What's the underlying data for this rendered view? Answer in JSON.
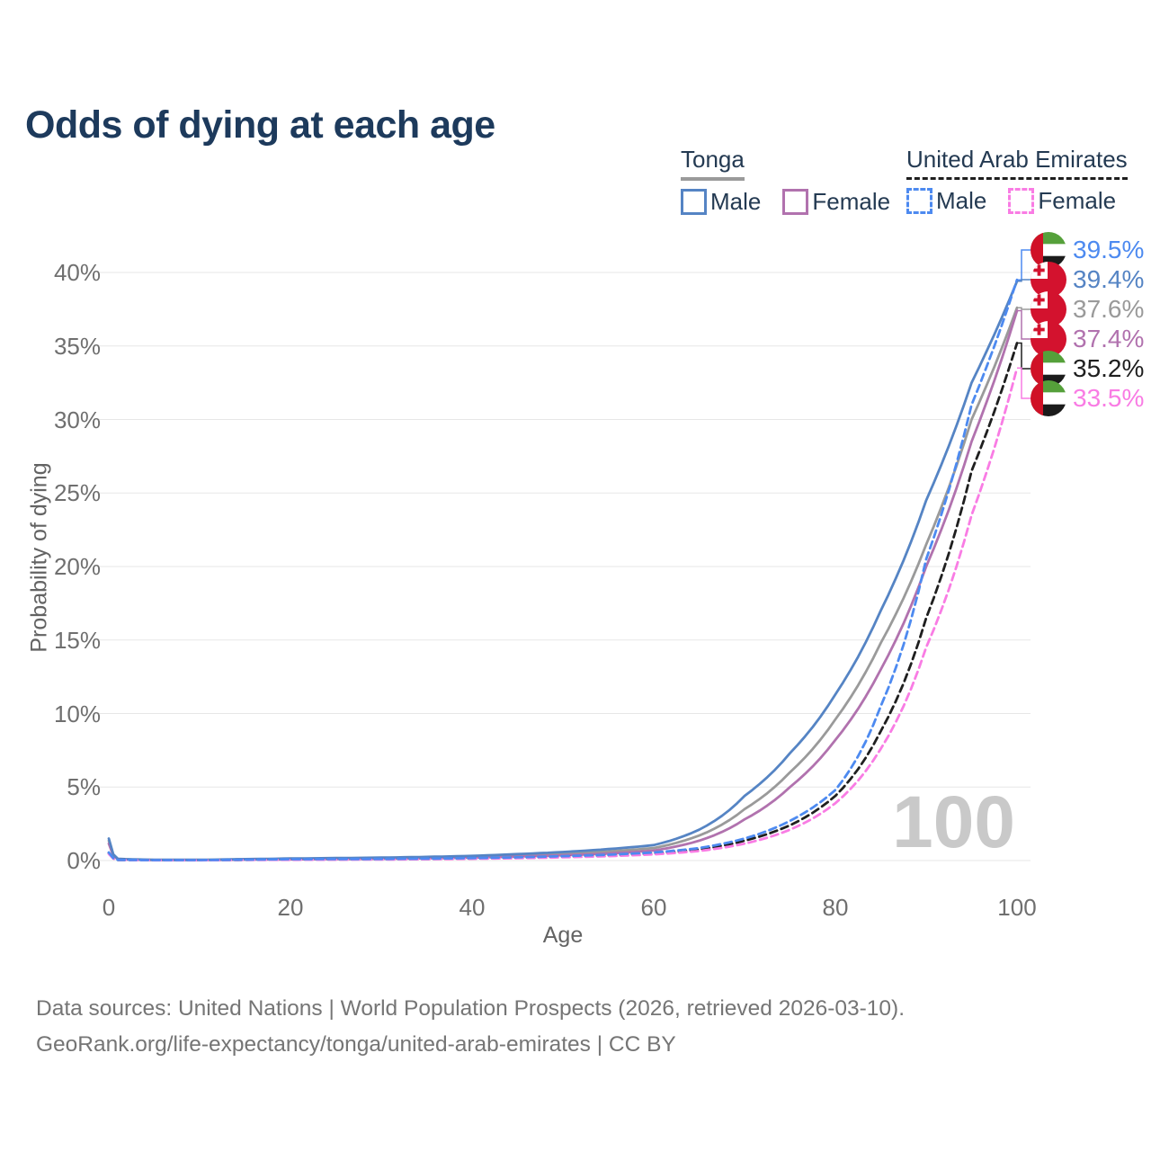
{
  "title": "Odds of dying at each age",
  "watermark": "100",
  "legend": {
    "groups": [
      {
        "country": "Tonga",
        "style": "solid",
        "items": [
          {
            "label": "Male",
            "color": "#5584c4",
            "dashed": false
          },
          {
            "label": "Female",
            "color": "#b172ae",
            "dashed": false
          }
        ]
      },
      {
        "country": "United Arab Emirates",
        "style": "dashed",
        "items": [
          {
            "label": "Male",
            "color": "#4d8af0",
            "dashed": true
          },
          {
            "label": "Female",
            "color": "#f97ce4",
            "dashed": true
          }
        ]
      }
    ]
  },
  "footer": {
    "line1": "Data sources: United Nations | World Population Prospects (2026, retrieved 2026-03-10).",
    "line2": "GeoRank.org/life-expectancy/tonga/united-arab-emirates | CC BY"
  },
  "chart_data": {
    "type": "line",
    "title": "Odds of dying at each age",
    "xlabel": "Age",
    "ylabel": "Probability of dying",
    "xlim": [
      0,
      100
    ],
    "ylim": [
      0,
      41.5
    ],
    "grid": true,
    "legend_position": "top-right",
    "xticks": [
      0,
      20,
      40,
      60,
      80,
      100
    ],
    "yticks": [
      "0%",
      "5%",
      "10%",
      "15%",
      "20%",
      "25%",
      "30%",
      "35%",
      "40%"
    ],
    "ages": [
      0,
      1,
      5,
      10,
      15,
      20,
      25,
      30,
      35,
      40,
      45,
      50,
      55,
      60,
      65,
      70,
      75,
      80,
      85,
      90,
      95,
      100
    ],
    "unit": "%",
    "series": [
      {
        "name": "Tonga — Male",
        "country": "Tonga",
        "sex": "Male",
        "style": "solid",
        "color": "#5584c4",
        "end_label": "39.4%",
        "values": [
          1.5,
          0.12,
          0.05,
          0.05,
          0.1,
          0.14,
          0.17,
          0.2,
          0.25,
          0.32,
          0.44,
          0.58,
          0.78,
          1.05,
          2.1,
          4.4,
          7.3,
          11.3,
          17.0,
          24.5,
          32.5,
          39.4
        ]
      },
      {
        "name": "Tonga — Female",
        "country": "Tonga",
        "sex": "Female",
        "style": "solid",
        "color": "#b172ae",
        "end_label": "37.4%",
        "values": [
          1.15,
          0.09,
          0.03,
          0.03,
          0.06,
          0.08,
          0.1,
          0.12,
          0.15,
          0.2,
          0.27,
          0.36,
          0.48,
          0.68,
          1.35,
          2.8,
          5.0,
          8.2,
          13.0,
          20.0,
          28.5,
          37.4
        ]
      },
      {
        "name": "Tonga",
        "country": "Tonga",
        "sex": "Both",
        "style": "solid",
        "color": "#9a9a9a",
        "end_label": "37.6%",
        "values": [
          1.35,
          0.1,
          0.04,
          0.04,
          0.08,
          0.11,
          0.13,
          0.16,
          0.2,
          0.26,
          0.35,
          0.47,
          0.62,
          0.85,
          1.7,
          3.5,
          6.0,
          9.6,
          14.8,
          21.5,
          30.0,
          37.6
        ]
      },
      {
        "name": "United Arab Emirates — Male",
        "country": "United Arab Emirates",
        "sex": "Male",
        "style": "dashed",
        "color": "#4d8af0",
        "end_label": "39.5%",
        "values": [
          0.55,
          0.05,
          0.03,
          0.03,
          0.06,
          0.09,
          0.1,
          0.11,
          0.13,
          0.17,
          0.22,
          0.3,
          0.4,
          0.55,
          0.85,
          1.5,
          2.7,
          4.8,
          10.5,
          20.5,
          31.0,
          39.5
        ]
      },
      {
        "name": "United Arab Emirates — Female",
        "country": "United Arab Emirates",
        "sex": "Female",
        "style": "dashed",
        "color": "#f97ce4",
        "end_label": "33.5%",
        "values": [
          0.45,
          0.04,
          0.02,
          0.02,
          0.04,
          0.05,
          0.06,
          0.07,
          0.09,
          0.12,
          0.16,
          0.22,
          0.3,
          0.42,
          0.65,
          1.15,
          2.1,
          3.9,
          7.6,
          14.5,
          23.5,
          33.5
        ]
      },
      {
        "name": "United Arab Emirates",
        "country": "United Arab Emirates",
        "sex": "Both",
        "style": "dashed",
        "color": "#1f1f1f",
        "end_label": "35.2%",
        "values": [
          0.5,
          0.045,
          0.025,
          0.025,
          0.05,
          0.07,
          0.08,
          0.09,
          0.11,
          0.14,
          0.19,
          0.26,
          0.35,
          0.48,
          0.75,
          1.35,
          2.4,
          4.4,
          8.8,
          16.5,
          26.5,
          35.2
        ]
      }
    ],
    "end_labels": [
      {
        "value": "39.5%",
        "flag": "uae",
        "color": "#4d8af0",
        "series": "United Arab Emirates — Male"
      },
      {
        "value": "39.4%",
        "flag": "tonga",
        "color": "#5584c4",
        "series": "Tonga — Male"
      },
      {
        "value": "37.6%",
        "flag": "tonga",
        "color": "#9a9a9a",
        "series": "Tonga"
      },
      {
        "value": "37.4%",
        "flag": "tonga",
        "color": "#b172ae",
        "series": "Tonga — Female"
      },
      {
        "value": "35.2%",
        "flag": "uae",
        "color": "#1f1f1f",
        "series": "United Arab Emirates"
      },
      {
        "value": "33.5%",
        "flag": "uae",
        "color": "#f97ce4",
        "series": "United Arab Emirates — Female"
      }
    ],
    "flag_colors": {
      "tonga_red": "#d3122e",
      "uae_red": "#d01126",
      "uae_green": "#55a03a",
      "uae_black": "#1b1b1b"
    },
    "gridline_color": "#e7e7e7"
  }
}
